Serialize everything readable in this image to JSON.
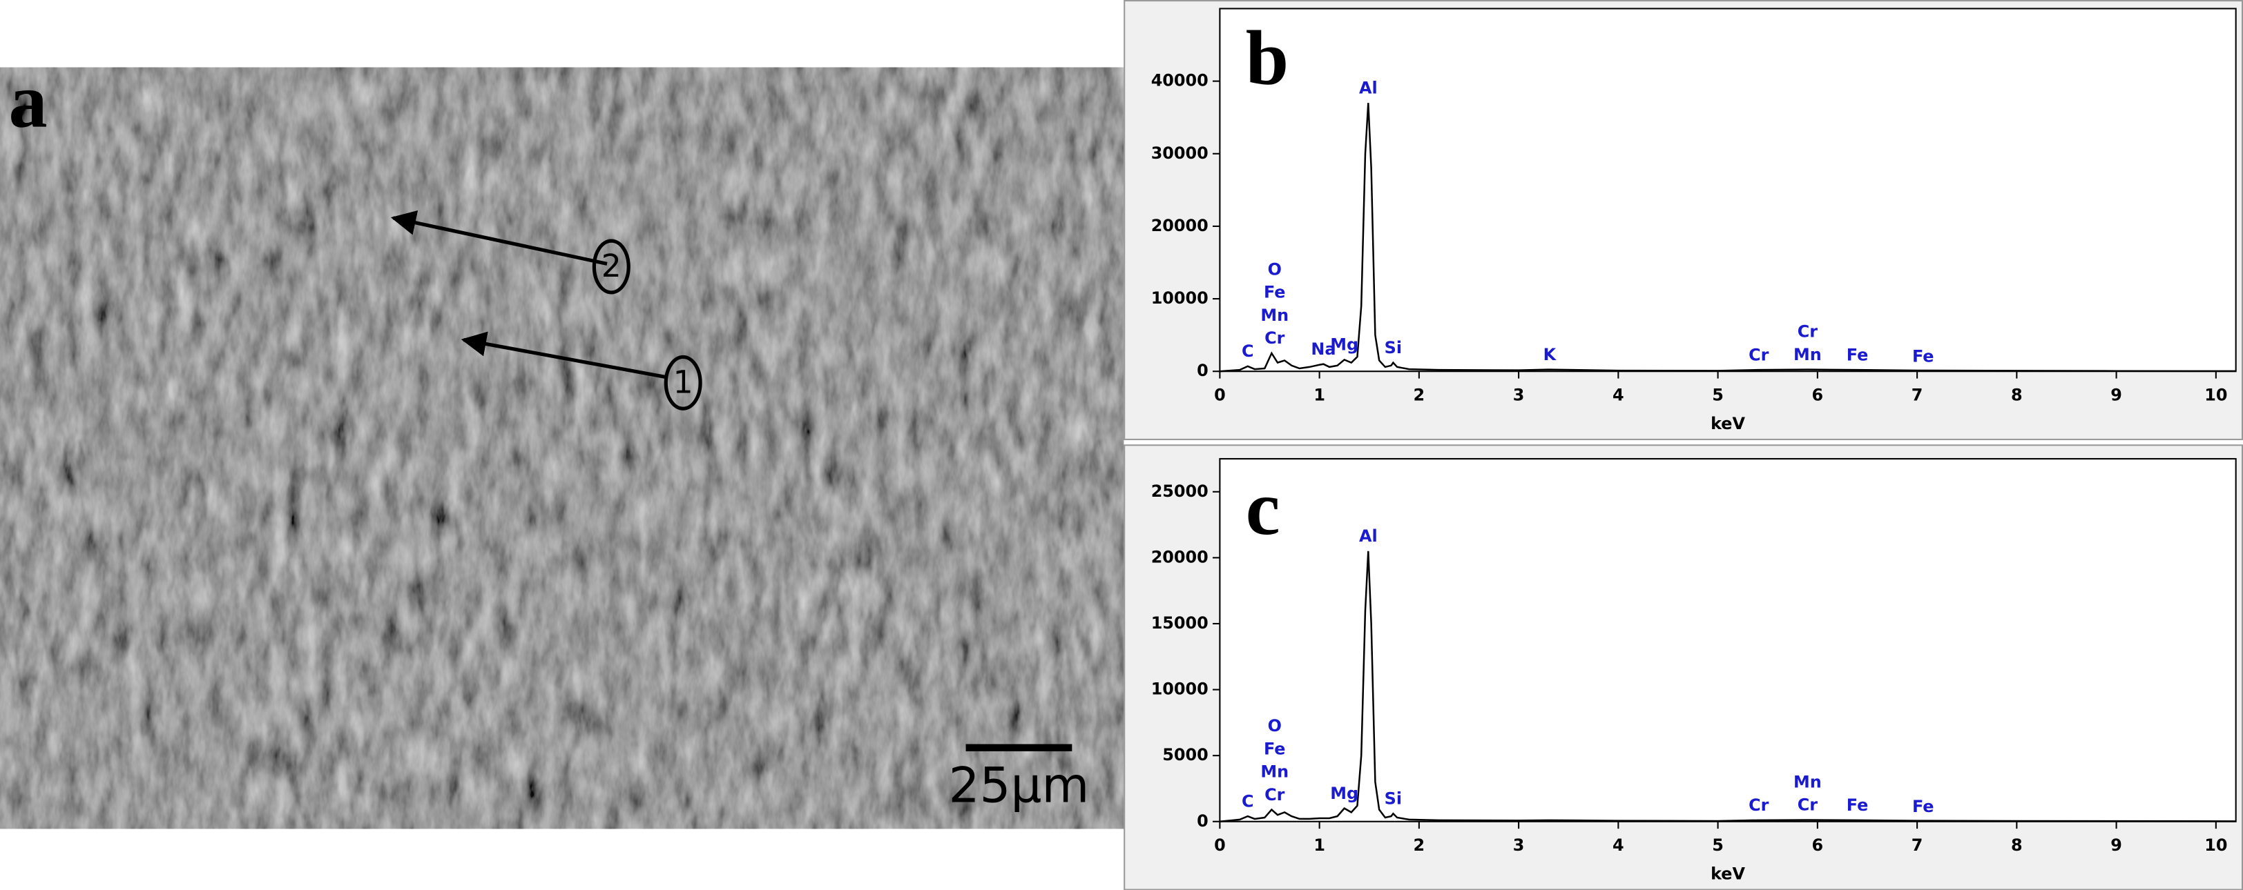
{
  "panel_a": {
    "label": "a",
    "scale_bar": "25μm",
    "markers": [
      "1",
      "2"
    ]
  },
  "chart_data": [
    {
      "type": "line",
      "panel": "b",
      "x_label": "keV",
      "x": [
        0,
        0.2,
        0.28,
        0.35,
        0.45,
        0.52,
        0.58,
        0.65,
        0.72,
        0.8,
        0.9,
        1.0,
        1.04,
        1.1,
        1.18,
        1.25,
        1.32,
        1.38,
        1.42,
        1.46,
        1.49,
        1.52,
        1.56,
        1.6,
        1.66,
        1.72,
        1.74,
        1.78,
        1.9,
        2.2,
        3,
        3.3,
        4,
        5,
        5.4,
        5.9,
        6.4,
        7,
        8,
        9,
        10.2
      ],
      "values": [
        0,
        200,
        700,
        300,
        400,
        2500,
        1200,
        1500,
        800,
        400,
        600,
        900,
        1000,
        600,
        800,
        1600,
        1200,
        2000,
        9000,
        30000,
        37000,
        28000,
        5000,
        1500,
        600,
        800,
        1200,
        600,
        300,
        200,
        150,
        250,
        100,
        80,
        200,
        250,
        200,
        120,
        80,
        50,
        30
      ],
      "color": "#000000",
      "xlim": [
        0,
        10.2
      ],
      "ylim": [
        0,
        50000
      ],
      "xticks": [
        0,
        1,
        2,
        3,
        4,
        5,
        6,
        7,
        8,
        9,
        10
      ],
      "yticks": [
        0,
        10000,
        20000,
        30000,
        40000
      ],
      "peak_labels": [
        {
          "text": "C",
          "x": 0.28
        },
        {
          "text": "O",
          "x": 0.55
        },
        {
          "text": "Fe",
          "x": 0.55
        },
        {
          "text": "Mn",
          "x": 0.55
        },
        {
          "text": "Cr",
          "x": 0.55
        },
        {
          "text": "Na",
          "x": 1.04
        },
        {
          "text": "Mg",
          "x": 1.25
        },
        {
          "text": "Al",
          "x": 1.49
        },
        {
          "text": "Si",
          "x": 1.74
        },
        {
          "text": "K",
          "x": 3.31
        },
        {
          "text": "Cr",
          "x": 5.41
        },
        {
          "text": "Cr",
          "x": 5.9
        },
        {
          "text": "Mn",
          "x": 5.9
        },
        {
          "text": "Fe",
          "x": 6.4
        },
        {
          "text": "Fe",
          "x": 7.06
        }
      ]
    },
    {
      "type": "line",
      "panel": "c",
      "x_label": "keV",
      "x": [
        0,
        0.2,
        0.28,
        0.35,
        0.45,
        0.52,
        0.58,
        0.65,
        0.72,
        0.8,
        0.9,
        1.0,
        1.04,
        1.1,
        1.18,
        1.25,
        1.32,
        1.38,
        1.42,
        1.46,
        1.49,
        1.52,
        1.56,
        1.6,
        1.66,
        1.72,
        1.74,
        1.78,
        1.9,
        2.2,
        3,
        3.3,
        4,
        5,
        5.4,
        5.9,
        6.4,
        7,
        8,
        9,
        10.2
      ],
      "values": [
        0,
        150,
        400,
        200,
        300,
        900,
        500,
        700,
        400,
        200,
        200,
        250,
        250,
        250,
        400,
        1000,
        700,
        1200,
        5000,
        16000,
        20500,
        15000,
        3000,
        900,
        300,
        400,
        600,
        300,
        150,
        100,
        80,
        100,
        60,
        40,
        100,
        120,
        100,
        60,
        40,
        30,
        20
      ],
      "color": "#000000",
      "xlim": [
        0,
        10.2
      ],
      "ylim": [
        0,
        27500
      ],
      "xticks": [
        0,
        1,
        2,
        3,
        4,
        5,
        6,
        7,
        8,
        9,
        10
      ],
      "yticks": [
        0,
        5000,
        10000,
        15000,
        20000,
        25000
      ],
      "peak_labels": [
        {
          "text": "C",
          "x": 0.28
        },
        {
          "text": "O",
          "x": 0.55
        },
        {
          "text": "Fe",
          "x": 0.55
        },
        {
          "text": "Mn",
          "x": 0.55
        },
        {
          "text": "Cr",
          "x": 0.55
        },
        {
          "text": "Mg",
          "x": 1.25
        },
        {
          "text": "Al",
          "x": 1.49
        },
        {
          "text": "Si",
          "x": 1.74
        },
        {
          "text": "Cr",
          "x": 5.41
        },
        {
          "text": "Mn",
          "x": 5.9
        },
        {
          "text": "Cr",
          "x": 5.9
        },
        {
          "text": "Fe",
          "x": 6.4
        },
        {
          "text": "Fe",
          "x": 7.06
        }
      ]
    }
  ]
}
